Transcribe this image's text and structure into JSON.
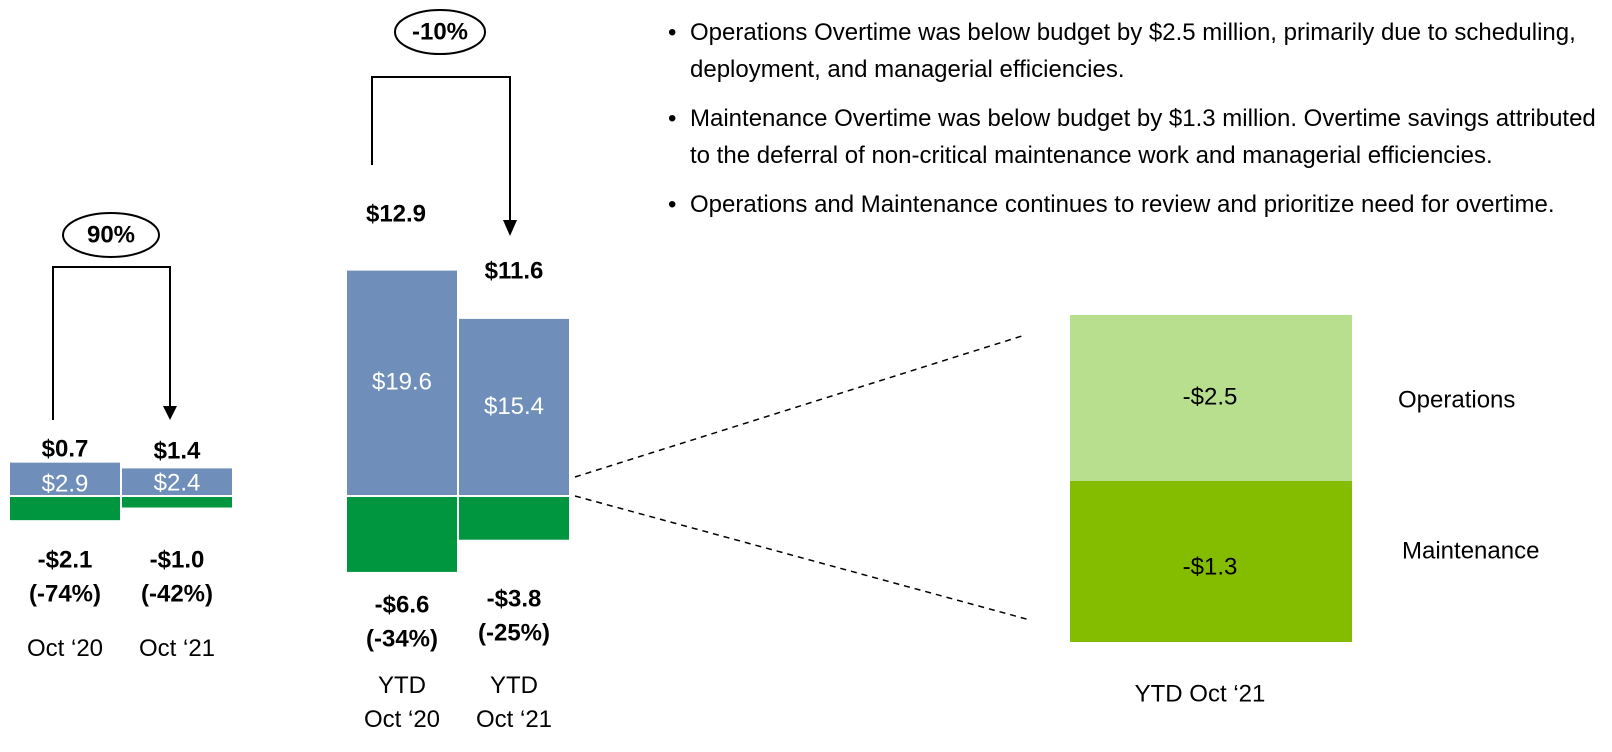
{
  "chart_data": [
    {
      "type": "bar",
      "categories": [
        "Oct ‘20",
        "Oct ‘21"
      ],
      "series": [
        {
          "color": "#6f8fba",
          "values": [
            2.9,
            2.4
          ],
          "value_labels": [
            "$2.9",
            "$2.4"
          ]
        },
        {
          "color": "#00963f",
          "values": [
            -2.1,
            -1.0
          ],
          "value_labels": [
            "-$2.1",
            "-$1.0"
          ],
          "pct_labels": [
            "(-74%)",
            "(-42%)"
          ]
        }
      ],
      "top_labels": [
        "$0.7",
        "$1.4"
      ],
      "change_label": "90%"
    },
    {
      "type": "bar",
      "categories": [
        "YTD Oct ‘20",
        "YTD Oct ‘21"
      ],
      "series": [
        {
          "color": "#6f8fba",
          "values": [
            19.6,
            15.4
          ],
          "value_labels": [
            "$19.6",
            "$15.4"
          ]
        },
        {
          "color": "#00963f",
          "values": [
            -6.6,
            -3.8
          ],
          "value_labels": [
            "-$6.6",
            "-$3.8"
          ],
          "pct_labels": [
            "(-34%)",
            "(-25%)"
          ]
        }
      ],
      "top_labels": [
        "$12.9",
        "$11.6"
      ],
      "change_label": "-10%"
    }
  ],
  "breakdown": {
    "title": "YTD Oct ‘21",
    "items": [
      {
        "name": "Operations",
        "label": "-$2.5",
        "color": "#b8df8e"
      },
      {
        "name": "Maintenance",
        "label": "-$1.3",
        "color": "#84bd00"
      }
    ]
  },
  "bullets": [
    "Operations Overtime was below budget by $2.5 million, primarily due to scheduling, deployment, and managerial efficiencies.",
    "Maintenance Overtime was below budget by $1.3 million. Overtime savings attributed to the deferral of non-critical maintenance work and managerial efficiencies.",
    "Operations and Maintenance continues to review and prioritize need for overtime."
  ]
}
